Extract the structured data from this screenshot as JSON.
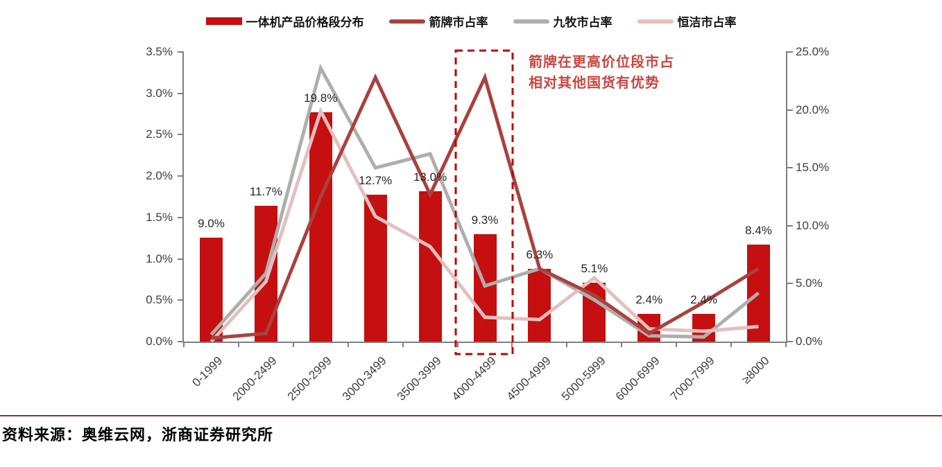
{
  "legend": {
    "items": [
      {
        "label": "一体机产品价格段分布",
        "type": "bar"
      },
      {
        "label": "箭牌市占率",
        "type": "line"
      },
      {
        "label": "九牧市占率",
        "type": "line"
      },
      {
        "label": "恒洁市占率",
        "type": "line"
      }
    ]
  },
  "chart_data": {
    "type": "combo bar+line",
    "categories": [
      "0-1999",
      "2000-2499",
      "2500-2999",
      "3000-3499",
      "3500-3999",
      "4000-4499",
      "4500-4999",
      "5000-5999",
      "6000-6999",
      "7000-7999",
      "≥8000"
    ],
    "bar_series": {
      "name": "一体机产品价格段分布",
      "values": [
        9.0,
        11.7,
        19.8,
        12.7,
        13.0,
        9.3,
        6.3,
        5.1,
        2.4,
        2.4,
        8.4
      ],
      "labels": [
        "9.0%",
        "11.7%",
        "19.8%",
        "12.7%",
        "13.0%",
        "9.3%",
        "6.3%",
        "5.1%",
        "2.4%",
        "2.4%",
        "8.4%"
      ],
      "color": "#C50F10",
      "value_axis": "right"
    },
    "line_series": [
      {
        "name": "箭牌市占率",
        "color": "#A8423E",
        "values": [
          0.3,
          0.7,
          12.5,
          22.8,
          12.7,
          22.8,
          6.3,
          4.0,
          0.7,
          3.4,
          6.3
        ]
      },
      {
        "name": "九牧市占率",
        "color": "#B0AEAD",
        "values": [
          0.6,
          5.9,
          23.6,
          15.0,
          16.2,
          4.8,
          6.3,
          3.6,
          0.5,
          0.4,
          4.2
        ]
      },
      {
        "name": "恒洁市占率",
        "color": "#E4BFBF",
        "values": [
          0.0,
          5.2,
          19.9,
          10.8,
          8.2,
          2.1,
          1.9,
          5.5,
          1.1,
          0.9,
          1.3
        ]
      }
    ],
    "left_axis": {
      "ticks": [
        "3.5%",
        "3.0%",
        "2.5%",
        "2.0%",
        "1.5%",
        "1.0%",
        "0.5%",
        "0.0%"
      ],
      "min": 0,
      "max": 3.5
    },
    "right_axis": {
      "ticks": [
        "25.0%",
        "20.0%",
        "15.0%",
        "10.0%",
        "5.0%",
        "0.0%"
      ],
      "min": 0,
      "max": 25
    },
    "annotation": {
      "lines": [
        "箭牌在更高价位段市占",
        "相对其他国货有优势"
      ],
      "color": "#CB453D"
    },
    "highlight": {
      "category": "4000-4499",
      "box_color": "#C00000"
    },
    "legend_position": "top",
    "grid": false
  },
  "footer": {
    "source_text": "资料来源：奥维云网，浙商证券研究所",
    "divider_color": "#90302E"
  }
}
